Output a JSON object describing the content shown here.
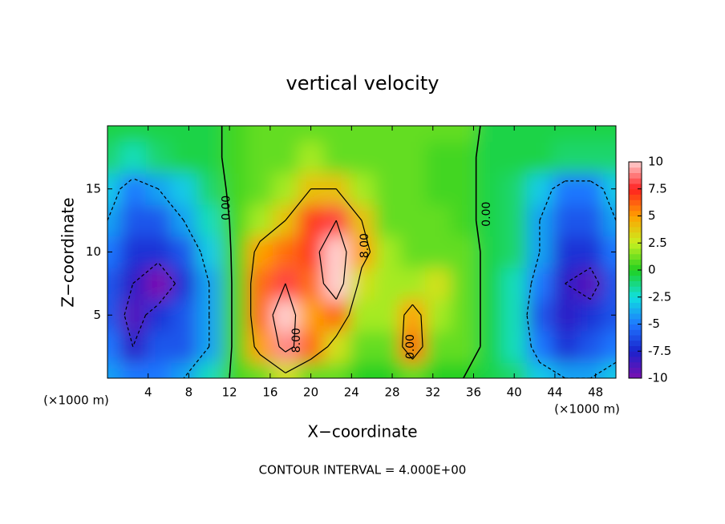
{
  "chart_data": {
    "type": "contour",
    "title": "vertical velocity",
    "x_label": "X−coordinate",
    "y_label": "Z−coordinate",
    "x_unit": "(×1000 m)",
    "y_unit": "(×1000 m)",
    "footer": "CONTOUR INTERVAL = 4.000E+00",
    "xlim": [
      0,
      50
    ],
    "ylim": [
      0,
      20
    ],
    "xticks": [
      4,
      8,
      12,
      16,
      20,
      24,
      28,
      32,
      36,
      40,
      44,
      48
    ],
    "yticks": [
      5,
      10,
      15
    ],
    "x": [
      0,
      2.5,
      5,
      7.5,
      10,
      12.5,
      15,
      17.5,
      20,
      22.5,
      25,
      27.5,
      30,
      32.5,
      35,
      37.5,
      40,
      42.5,
      45,
      47.5,
      50
    ],
    "z": [
      0,
      2.5,
      5,
      7.5,
      10,
      12.5,
      15,
      17.5,
      20
    ],
    "values": [
      [
        -4,
        -5,
        -5,
        -4,
        -2,
        0.5,
        1,
        3,
        1,
        1,
        0,
        0,
        1,
        0,
        0,
        -0.5,
        -1,
        -3,
        -4,
        -4,
        -3
      ],
      [
        -5,
        -8,
        -6,
        -6,
        -4,
        0.5,
        5,
        9,
        6,
        3,
        1,
        1,
        6,
        1,
        1,
        -0.5,
        -2,
        -5,
        -7,
        -6,
        -5
      ],
      [
        -6,
        -9,
        -7,
        -6,
        -4,
        0.5,
        6,
        10,
        5,
        6,
        2,
        2,
        5,
        2,
        1,
        -0.5,
        -2,
        -6,
        -8,
        -7,
        -6
      ],
      [
        -6,
        -8,
        -10,
        -7,
        -4,
        0.5,
        6,
        8,
        6,
        10,
        3,
        2,
        2,
        3,
        1,
        -0.5,
        -2,
        -5,
        -8,
        -9,
        -6
      ],
      [
        -5,
        -7,
        -7,
        -6,
        -3,
        0.5,
        5,
        6,
        7,
        10,
        5,
        2,
        1,
        1,
        1,
        -0.5,
        -1,
        -4,
        -7,
        -7,
        -5
      ],
      [
        -4,
        -6,
        -6,
        -4,
        -2,
        0.5,
        2,
        4,
        7,
        8,
        4,
        1,
        1,
        1,
        0.5,
        -0.5,
        -1,
        -4,
        -6,
        -6,
        -4
      ],
      [
        -3,
        -5,
        -4,
        -3,
        -1,
        0.5,
        1,
        2,
        4,
        4,
        2,
        1,
        1,
        0.5,
        0.5,
        -0.5,
        -1,
        -3,
        -5,
        -5,
        -3
      ],
      [
        -1,
        -2,
        -1,
        -0.5,
        -0.5,
        0.5,
        1,
        1,
        2,
        1,
        1,
        1,
        1,
        0.5,
        0.5,
        -0.5,
        -0.5,
        -0.5,
        -1,
        -1,
        -1
      ],
      [
        -0.5,
        -0.5,
        -0.5,
        -0.5,
        -0.5,
        0.5,
        1,
        1,
        1,
        1,
        1,
        1,
        1,
        1,
        1,
        -0.5,
        -0.5,
        -0.5,
        -0.5,
        -0.5,
        -0.5
      ]
    ],
    "contour_levels": [
      -8,
      -4,
      0,
      4,
      8
    ],
    "contour_labels": [
      {
        "value": 0,
        "label": "0.00"
      },
      {
        "value": 0,
        "label": "0.00"
      },
      {
        "value": 8,
        "label": "8.00"
      },
      {
        "value": 8,
        "label": "8.00"
      },
      {
        "value": 0,
        "label": "0.00"
      }
    ],
    "colorbar_ticks": [
      -10,
      -7.5,
      -5,
      -2.5,
      0,
      2.5,
      5,
      7.5,
      10
    ],
    "colors": [
      "#7a10b0",
      "#1a22cc",
      "#1e78ff",
      "#10e0e0",
      "#20d020",
      "#c8f020",
      "#ffa000",
      "#ff2020",
      "#ffd0d0"
    ]
  }
}
